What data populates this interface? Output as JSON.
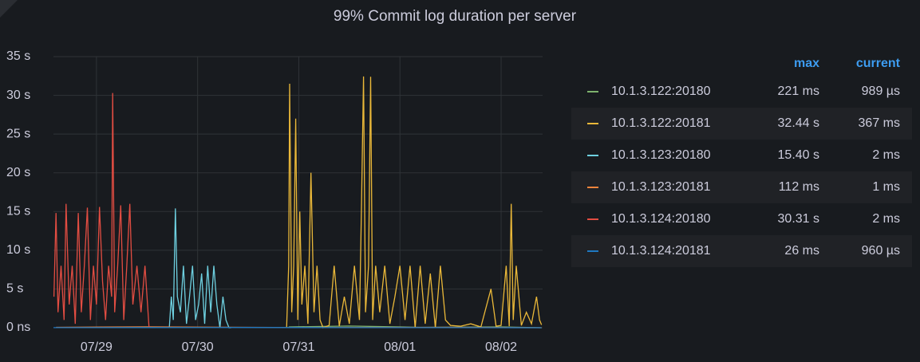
{
  "chart_data": {
    "type": "line",
    "title": "99% Commit log duration per server",
    "xlim": [
      0.575,
      5.41
    ],
    "xticks": [
      {
        "value": 1,
        "label": "07/29"
      },
      {
        "value": 2,
        "label": "07/30"
      },
      {
        "value": 3,
        "label": "07/31"
      },
      {
        "value": 4,
        "label": "08/01"
      },
      {
        "value": 5,
        "label": "08/02"
      }
    ],
    "ylim": [
      0,
      35
    ],
    "yticks": [
      {
        "value": 0,
        "label": "0 ns"
      },
      {
        "value": 5,
        "label": "5 s"
      },
      {
        "value": 10,
        "label": "10 s"
      },
      {
        "value": 15,
        "label": "15 s"
      },
      {
        "value": 20,
        "label": "20 s"
      },
      {
        "value": 25,
        "label": "25 s"
      },
      {
        "value": 30,
        "label": "30 s"
      },
      {
        "value": 35,
        "label": "35 s"
      }
    ],
    "grid": true,
    "legend_columns": [
      "max",
      "current"
    ],
    "series": [
      {
        "name": "10.1.3.122:20180",
        "color": "#7eb26d",
        "legend": {
          "max": "221 ms",
          "current": "989 µs"
        },
        "x": [
          2.9,
          3.5,
          4.2,
          5.0,
          5.4
        ],
        "values": [
          0.1,
          0.221,
          0.05,
          0.1,
          0.000989
        ]
      },
      {
        "name": "10.1.3.122:20181",
        "color": "#eab839",
        "legend": {
          "max": "32.44 s",
          "current": "367 ms"
        },
        "x": [
          2.88,
          2.9,
          2.91,
          2.93,
          2.95,
          2.97,
          2.99,
          3.01,
          3.03,
          3.06,
          3.09,
          3.12,
          3.15,
          3.18,
          3.21,
          3.24,
          3.3,
          3.35,
          3.4,
          3.45,
          3.5,
          3.55,
          3.6,
          3.62,
          3.64,
          3.66,
          3.69,
          3.71,
          3.73,
          3.76,
          3.8,
          3.85,
          3.9,
          3.95,
          4.0,
          4.05,
          4.1,
          4.15,
          4.2,
          4.25,
          4.3,
          4.35,
          4.4,
          4.45,
          4.5,
          4.6,
          4.7,
          4.8,
          4.9,
          4.95,
          5.0,
          5.05,
          5.08,
          5.1,
          5.12,
          5.15,
          5.2,
          5.25,
          5.3,
          5.35,
          5.38,
          5.4
        ],
        "values": [
          0,
          8,
          31.5,
          2,
          8,
          27,
          1,
          15,
          3,
          8,
          0.5,
          20,
          2,
          8,
          1,
          0,
          0.3,
          8,
          0.2,
          4,
          0.5,
          8,
          1,
          16,
          32.44,
          2,
          8,
          32.4,
          1,
          8,
          2,
          8,
          0.5,
          4,
          8,
          1,
          8,
          0,
          8,
          0.5,
          7,
          0,
          8,
          1,
          0.3,
          0.2,
          0.5,
          0.1,
          5,
          0.2,
          0.3,
          8,
          0.2,
          16,
          1,
          8,
          0.3,
          2,
          0.5,
          4,
          1,
          0.367
        ]
      },
      {
        "name": "10.1.3.123:20180",
        "color": "#6ed0e0",
        "legend": {
          "max": "15.40 s",
          "current": "2 ms"
        },
        "x": [
          1.72,
          1.74,
          1.76,
          1.78,
          1.8,
          1.83,
          1.86,
          1.89,
          1.92,
          1.95,
          1.98,
          2.01,
          2.04,
          2.07,
          2.1,
          2.13,
          2.16,
          2.19,
          2.22,
          2.25,
          2.28,
          2.31,
          2.33
        ],
        "values": [
          0,
          4,
          1,
          15.4,
          4,
          2,
          8,
          0.5,
          4,
          8,
          1,
          3,
          7,
          0.5,
          8,
          2,
          8,
          3,
          0,
          4,
          1,
          0,
          0.002
        ]
      },
      {
        "name": "10.1.3.123:20181",
        "color": "#ef843c",
        "legend": {
          "max": "112 ms",
          "current": "1 ms"
        },
        "x": [
          0.6,
          1.5,
          3,
          4.5,
          5.4
        ],
        "values": [
          0.05,
          0.112,
          0.02,
          0.05,
          0.001
        ]
      },
      {
        "name": "10.1.3.124:20180",
        "color": "#e24d42",
        "legend": {
          "max": "30.31 s",
          "current": "2 ms"
        },
        "x": [
          0.58,
          0.6,
          0.62,
          0.65,
          0.68,
          0.7,
          0.73,
          0.76,
          0.79,
          0.82,
          0.85,
          0.88,
          0.91,
          0.94,
          0.97,
          1.0,
          1.03,
          1.06,
          1.09,
          1.12,
          1.15,
          1.16,
          1.18,
          1.21,
          1.24,
          1.27,
          1.3,
          1.33,
          1.36,
          1.4,
          1.44,
          1.48,
          1.52
        ],
        "values": [
          4,
          14.8,
          2,
          8,
          1,
          16,
          3,
          8,
          0.5,
          14.8,
          2,
          8,
          15.5,
          1,
          8,
          3,
          15.6,
          6,
          1,
          8,
          4,
          30.31,
          2,
          8,
          15.8,
          1,
          8,
          16,
          3,
          8,
          2,
          8,
          0.002
        ]
      },
      {
        "name": "10.1.3.124:20181",
        "color": "#1f78c1",
        "legend": {
          "max": "26 ms",
          "current": "960 µs"
        },
        "x": [
          0.575,
          1.5,
          2.5,
          3.5,
          4.5,
          5.4
        ],
        "values": [
          0.01,
          0.02,
          0.026,
          0.01,
          0.01,
          0.00096
        ]
      }
    ]
  }
}
